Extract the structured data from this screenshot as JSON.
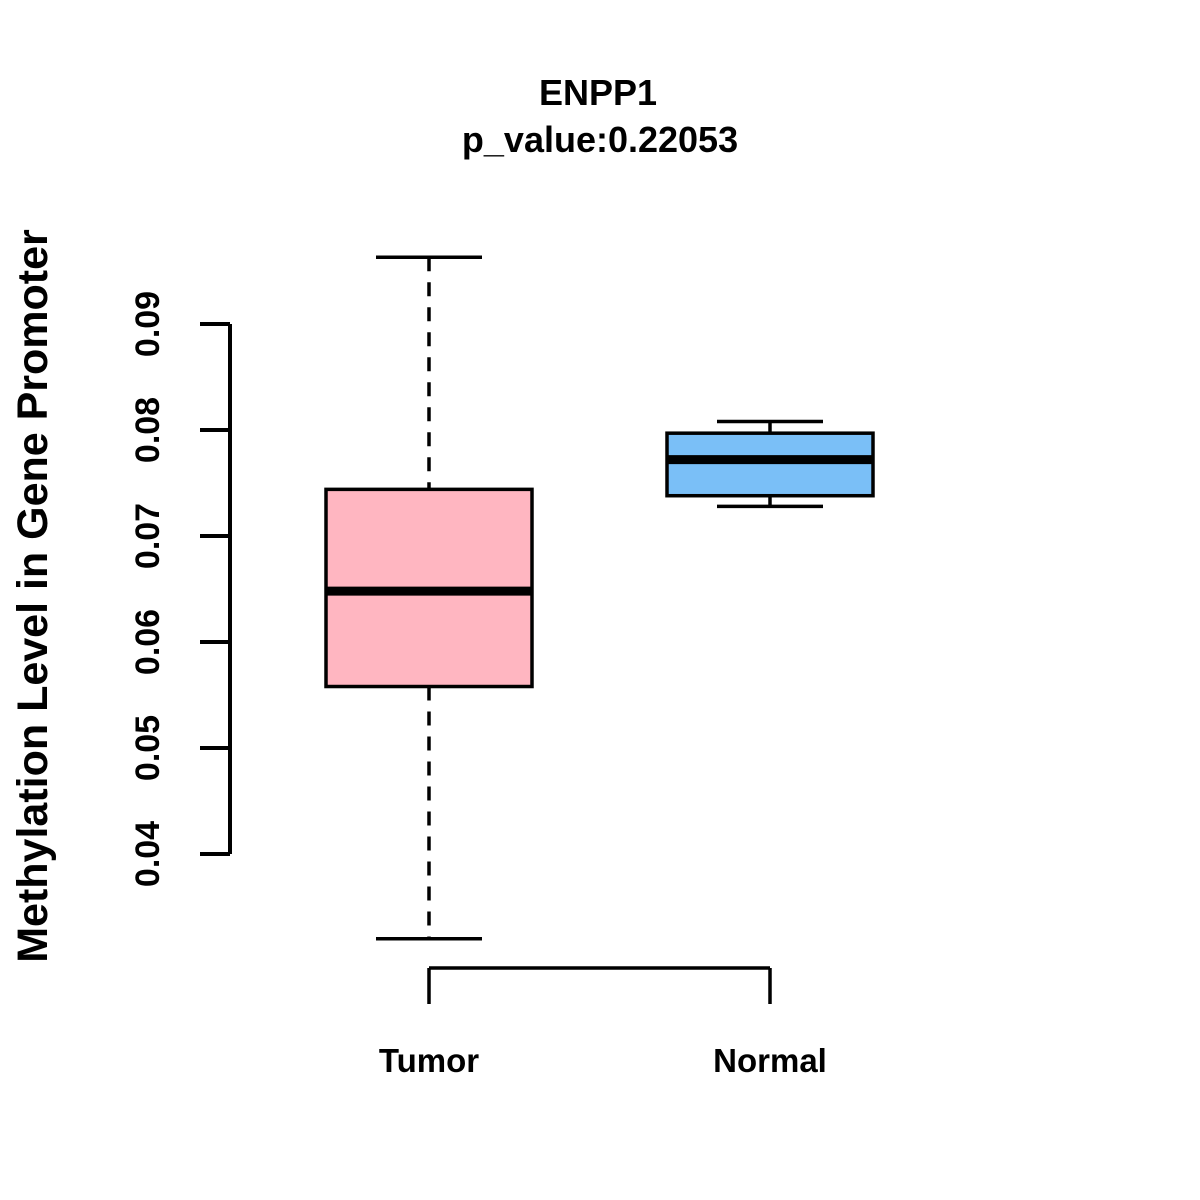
{
  "chart_data": {
    "type": "boxplot",
    "title": "ENPP1",
    "subtitle": "p_value:0.22053",
    "ylabel": "Methylation Level in Gene Promoter",
    "xlabel": "",
    "categories": [
      "Tumor",
      "Normal"
    ],
    "series": [
      {
        "name": "Tumor",
        "lower_whisker": 0.032,
        "q1": 0.0558,
        "median": 0.0648,
        "q3": 0.0744,
        "upper_whisker": 0.0963,
        "color": "#FFB6C1"
      },
      {
        "name": "Normal",
        "lower_whisker": 0.0728,
        "q1": 0.0738,
        "median": 0.0772,
        "q3": 0.0797,
        "upper_whisker": 0.0808,
        "color": "#7ABFF7"
      }
    ],
    "y_ticks": [
      0.04,
      0.05,
      0.06,
      0.07,
      0.08,
      0.09
    ],
    "y_tick_labels": [
      "0.04",
      "0.05",
      "0.06",
      "0.07",
      "0.08",
      "0.09"
    ],
    "ylim": [
      0.04,
      0.09
    ],
    "grid": false,
    "legend": "none",
    "colors": {
      "tumor_fill": "#FFB6C1",
      "normal_fill": "#7ABFF7",
      "line": "#000000",
      "background": "#FFFFFF"
    }
  }
}
